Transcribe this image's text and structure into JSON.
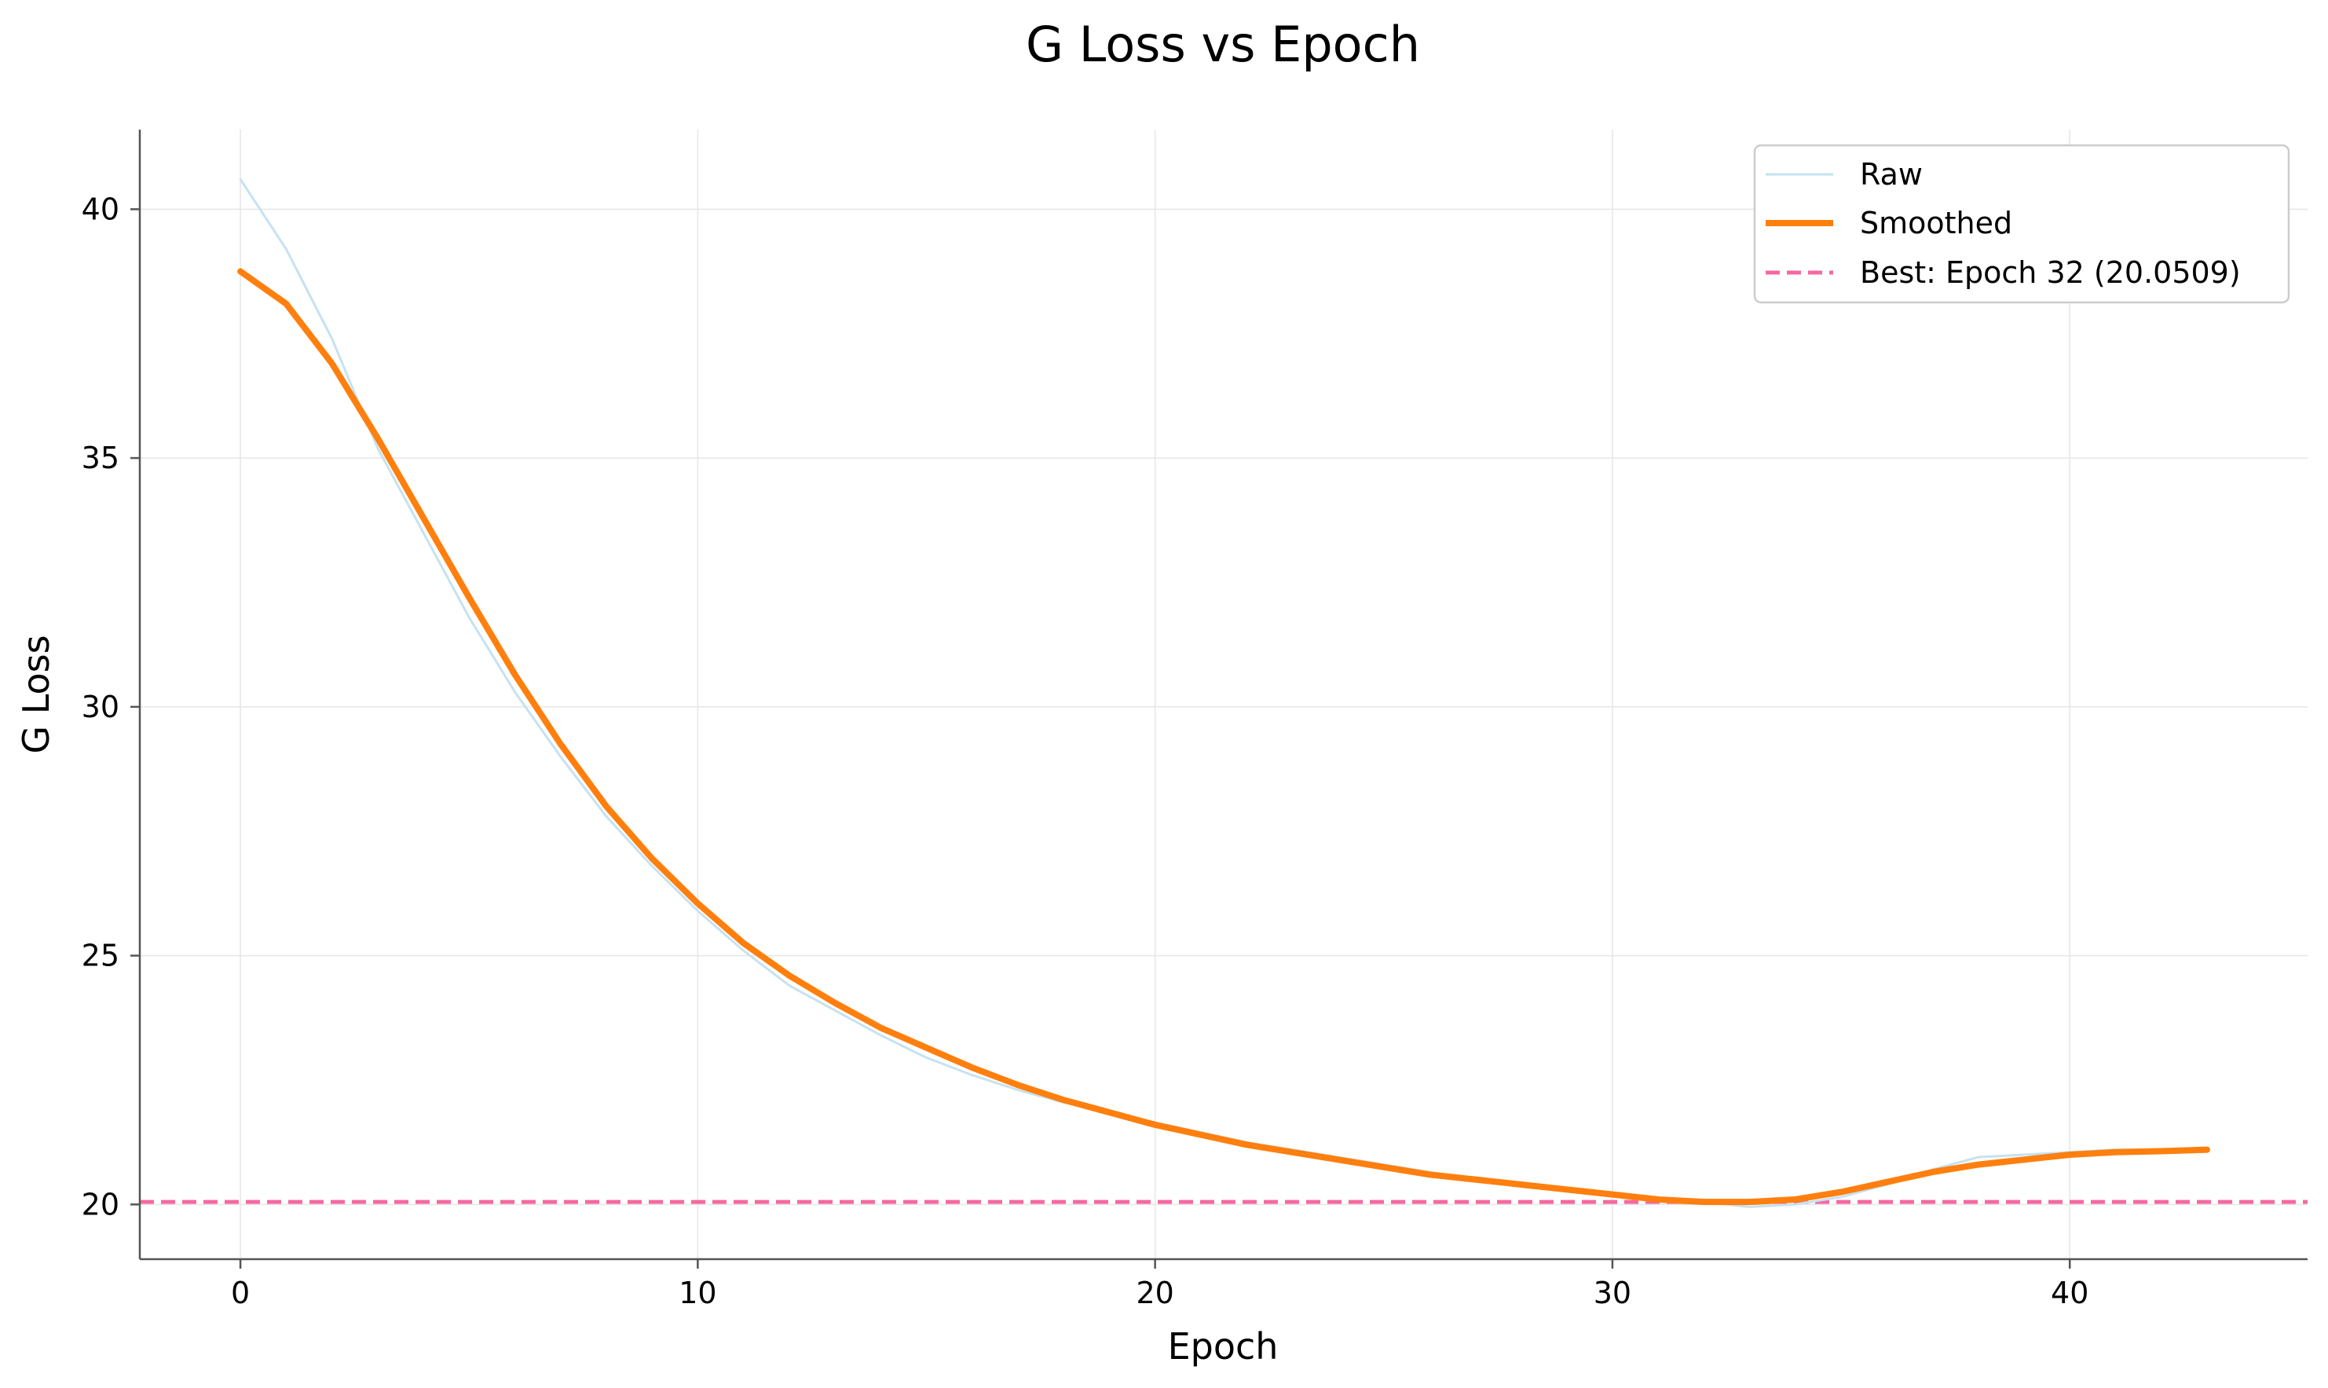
{
  "chart_data": {
    "type": "line",
    "title": "G Loss vs Epoch",
    "xlabel": "Epoch",
    "ylabel": "G Loss",
    "xlim": [
      -2.2,
      45.2
    ],
    "ylim": [
      18.9,
      41.6
    ],
    "xticks": [
      0,
      10,
      20,
      30,
      40
    ],
    "yticks": [
      20,
      25,
      30,
      35,
      40
    ],
    "grid": true,
    "legend_position": "top-right",
    "colors": {
      "raw": "#c6e2f0",
      "smoothed": "#ff7f0e",
      "best": "#f768a1"
    },
    "series": [
      {
        "name": "Raw",
        "style": "thin-line",
        "x": [
          0,
          1,
          2,
          3,
          4,
          5,
          6,
          7,
          8,
          9,
          10,
          11,
          12,
          13,
          14,
          15,
          16,
          17,
          18,
          19,
          20,
          21,
          22,
          23,
          24,
          25,
          26,
          27,
          28,
          29,
          30,
          31,
          32,
          33,
          34,
          35,
          36,
          37,
          38,
          39,
          40,
          41,
          42,
          43
        ],
        "y": [
          40.6,
          39.2,
          37.4,
          35.2,
          33.5,
          31.8,
          30.3,
          29.0,
          27.8,
          26.8,
          25.9,
          25.1,
          24.4,
          23.9,
          23.4,
          22.95,
          22.6,
          22.3,
          22.05,
          21.85,
          21.65,
          21.45,
          21.25,
          21.1,
          20.95,
          20.8,
          20.65,
          20.5,
          20.4,
          20.3,
          20.2,
          20.1,
          20.05,
          19.95,
          20.0,
          20.15,
          20.4,
          20.7,
          20.95,
          21.0,
          21.05,
          21.1,
          21.1,
          21.1
        ]
      },
      {
        "name": "Smoothed",
        "style": "thick-line",
        "x": [
          0,
          1,
          2,
          3,
          4,
          5,
          6,
          7,
          8,
          9,
          10,
          11,
          12,
          13,
          14,
          15,
          16,
          17,
          18,
          19,
          20,
          21,
          22,
          23,
          24,
          25,
          26,
          27,
          28,
          29,
          30,
          31,
          32,
          33,
          34,
          35,
          36,
          37,
          38,
          39,
          40,
          41,
          42,
          43
        ],
        "y": [
          38.75,
          38.1,
          36.9,
          35.4,
          33.8,
          32.2,
          30.65,
          29.25,
          28.0,
          26.95,
          26.05,
          25.25,
          24.6,
          24.05,
          23.55,
          23.15,
          22.75,
          22.4,
          22.1,
          21.85,
          21.6,
          21.4,
          21.2,
          21.05,
          20.9,
          20.75,
          20.6,
          20.5,
          20.4,
          20.3,
          20.2,
          20.1,
          20.05,
          20.05,
          20.1,
          20.25,
          20.45,
          20.65,
          20.8,
          20.9,
          21.0,
          21.05,
          21.07,
          21.1
        ]
      }
    ],
    "reference_line": {
      "name": "Best: Epoch 32 (20.0509)",
      "y": 20.0509,
      "style": "dashed"
    },
    "legend": [
      "Raw",
      "Smoothed",
      "Best: Epoch 32 (20.0509)"
    ]
  }
}
